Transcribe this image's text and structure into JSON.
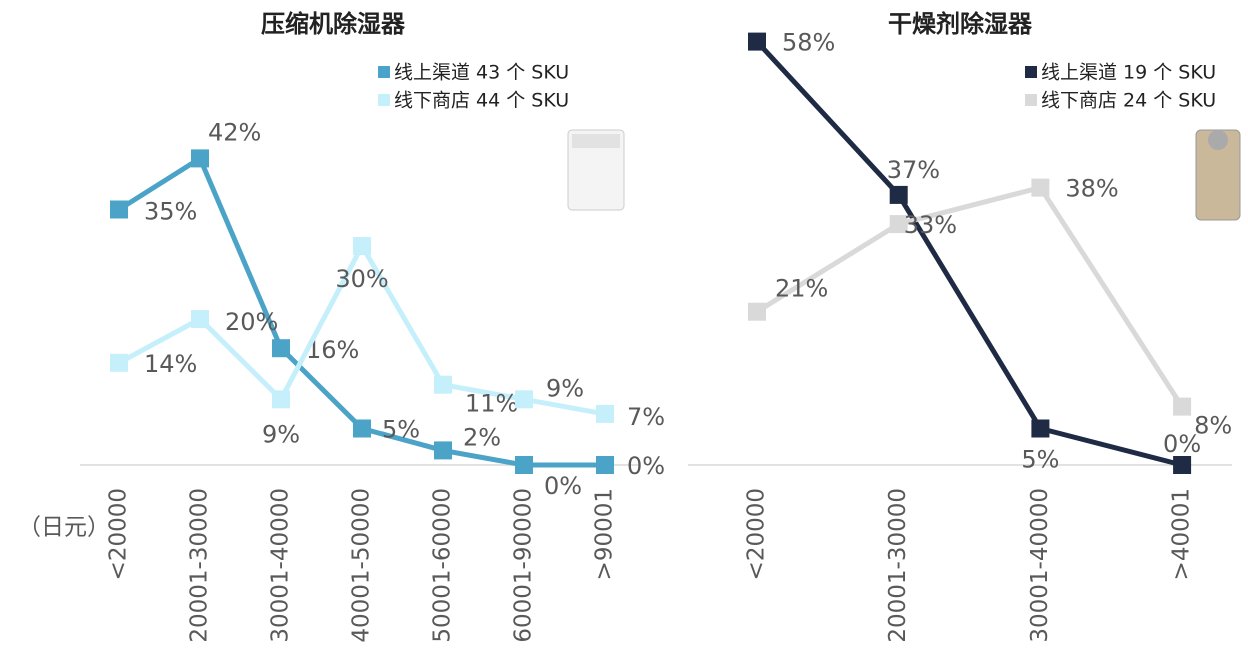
{
  "chart_data": [
    {
      "type": "line",
      "title": "压缩机除湿器",
      "x_label": "（日元）",
      "categories": [
        "<20000",
        "20001-30000",
        "30001-40000",
        "40001-50000",
        "50001-60000",
        "60001-90000",
        ">90001"
      ],
      "ylim": [
        0,
        60
      ],
      "series": [
        {
          "name": "线上渠道 43 个 SKU",
          "color": "#4ba3c7",
          "values": [
            35,
            42,
            16,
            5,
            2,
            0,
            0
          ],
          "value_labels": [
            "35%",
            "42%",
            "16%",
            "5%",
            "2%",
            "0%",
            "0%"
          ]
        },
        {
          "name": "线下商店 44 个 SKU",
          "color": "#c5f0fb",
          "values": [
            14,
            20,
            9,
            30,
            11,
            9,
            7
          ],
          "value_labels": [
            "14%",
            "20%",
            "9%",
            "30%",
            "11%",
            "9%",
            "7%"
          ]
        }
      ]
    },
    {
      "type": "line",
      "title": "干燥剂除湿器",
      "categories": [
        "<20000",
        "20001-30000",
        "30001-40000",
        ">40001"
      ],
      "ylim": [
        0,
        60
      ],
      "series": [
        {
          "name": "线上渠道 19 个 SKU",
          "color": "#1f2a44",
          "values": [
            58,
            37,
            5,
            0
          ],
          "value_labels": [
            "58%",
            "37%",
            "5%",
            "0%"
          ]
        },
        {
          "name": "线下商店 24 个 SKU",
          "color": "#d9d9d9",
          "values": [
            21,
            33,
            38,
            8
          ],
          "value_labels": [
            "21%",
            "33%",
            "38%",
            "8%"
          ]
        }
      ]
    }
  ]
}
